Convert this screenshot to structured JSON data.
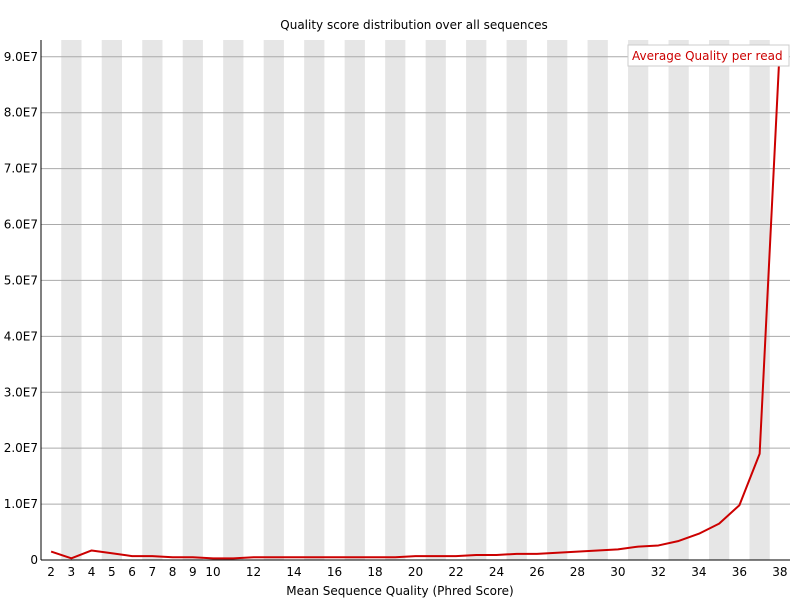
{
  "chart_data": {
    "type": "line",
    "title": "Quality score distribution over all sequences",
    "xlabel": "Mean Sequence Quality (Phred Score)",
    "ylabel": "",
    "x": [
      2,
      3,
      4,
      5,
      6,
      7,
      8,
      9,
      10,
      11,
      12,
      13,
      14,
      15,
      16,
      17,
      18,
      19,
      20,
      21,
      22,
      23,
      24,
      25,
      26,
      27,
      28,
      29,
      30,
      31,
      32,
      33,
      34,
      35,
      36,
      37,
      38
    ],
    "series": [
      {
        "name": "Average Quality per read",
        "values": [
          1500000,
          300000,
          1700000,
          1200000,
          700000,
          700000,
          500000,
          500000,
          300000,
          300000,
          500000,
          500000,
          500000,
          500000,
          500000,
          500000,
          500000,
          500000,
          700000,
          700000,
          700000,
          900000,
          900000,
          1100000,
          1100000,
          1300000,
          1500000,
          1700000,
          1900000,
          2400000,
          2600000,
          3400000,
          4700000,
          6500000,
          9800000,
          19000000,
          92000000
        ],
        "color": "#cc0000"
      }
    ],
    "xlim": [
      2,
      38
    ],
    "ylim": [
      0,
      93000000
    ],
    "yticks": [
      0,
      10000000,
      20000000,
      30000000,
      40000000,
      50000000,
      60000000,
      70000000,
      80000000,
      90000000
    ],
    "ytick_labels": [
      "0",
      "1.0E7",
      "2.0E7",
      "3.0E7",
      "4.0E7",
      "5.0E7",
      "6.0E7",
      "7.0E7",
      "8.0E7",
      "9.0E7"
    ],
    "xtick_labels": [
      "2",
      "3",
      "4",
      "5",
      "6",
      "7",
      "8",
      "9",
      "10",
      "12",
      "14",
      "16",
      "18",
      "20",
      "22",
      "24",
      "26",
      "28",
      "30",
      "32",
      "34",
      "36",
      "38"
    ],
    "xtick_values": [
      2,
      3,
      4,
      5,
      6,
      7,
      8,
      9,
      10,
      12,
      14,
      16,
      18,
      20,
      22,
      24,
      26,
      28,
      30,
      32,
      34,
      36,
      38
    ],
    "grid": true,
    "legend": "top-right",
    "band_color": "#e6e6e6",
    "grid_color": "#aaaaaa"
  }
}
